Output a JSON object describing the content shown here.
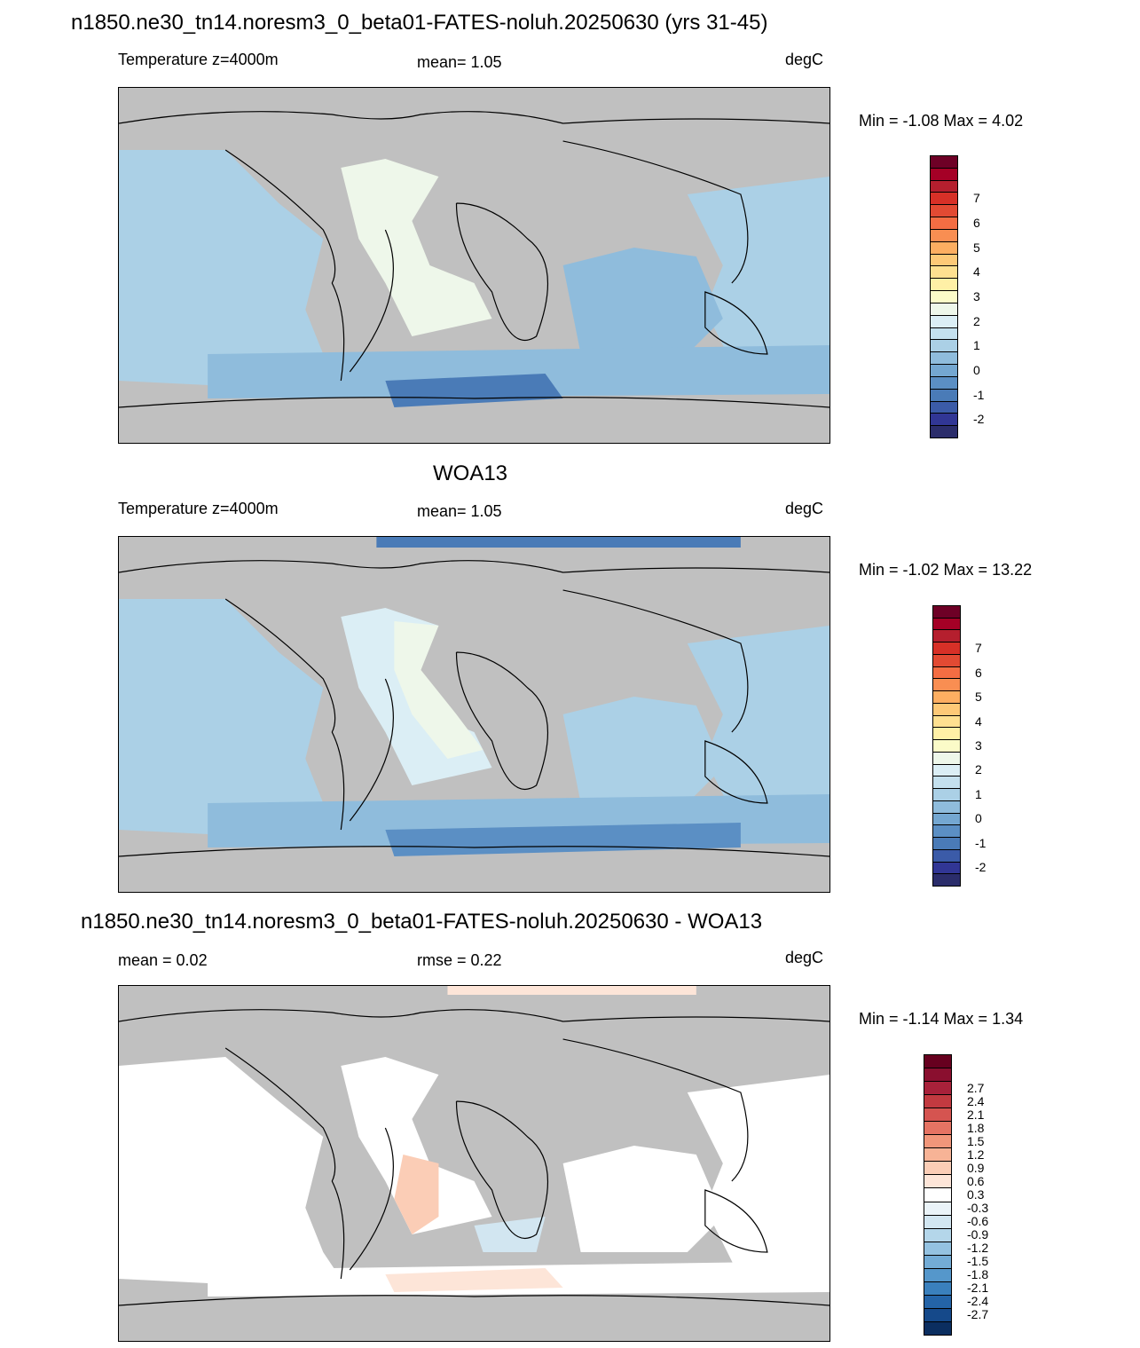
{
  "page": {
    "title": "n1850.ne30_tn14.noresm3_0_beta01-FATES-noluh.20250630 (yrs 31-45)"
  },
  "panels": [
    {
      "heading": "",
      "left_label": "Temperature z=4000m",
      "mid_label": "mean=   1.05",
      "unit": "degC",
      "minmax": "Min =  -1.08 Max =   4.02",
      "palette": "temp"
    },
    {
      "heading": "WOA13",
      "left_label": "Temperature z=4000m",
      "mid_label": "mean=   1.05",
      "unit": "degC",
      "minmax": "Min =  -1.02 Max =  13.22",
      "palette": "temp"
    },
    {
      "heading": "n1850.ne30_tn14.noresm3_0_beta01-FATES-noluh.20250630 - WOA13",
      "left_label": "mean =   0.02",
      "mid_label": "rmse =   0.22",
      "unit": "degC",
      "minmax": "Min =  -1.14 Max =   1.34",
      "palette": "diff"
    }
  ],
  "colorbars": {
    "temp": {
      "colors": [
        "#2b2d6b",
        "#313695",
        "#3b5ba8",
        "#4a7bb7",
        "#5b8fc4",
        "#74a7d1",
        "#8fbcdc",
        "#abd0e6",
        "#c4e0ee",
        "#dbeef5",
        "#eef7ea",
        "#fbfbc8",
        "#fff0a6",
        "#fee090",
        "#fdc977",
        "#fdae61",
        "#f98e52",
        "#f46d43",
        "#e24a33",
        "#d73027",
        "#b51f2e",
        "#a50026",
        "#6e0026"
      ],
      "tick_labels": [
        "-2",
        "-1",
        "0",
        "1",
        "2",
        "3",
        "4",
        "5",
        "6",
        "7"
      ]
    },
    "diff": {
      "colors": [
        "#0b2e60",
        "#15498a",
        "#2464a8",
        "#3a80bd",
        "#5597cb",
        "#73acd6",
        "#94c2e1",
        "#b4d6ea",
        "#d2e6f1",
        "#eaf3f8",
        "#ffffff",
        "#fde5d8",
        "#fbcdb6",
        "#f7b396",
        "#f1967a",
        "#e57363",
        "#d55450",
        "#c23a40",
        "#a8213a",
        "#8a0f2f",
        "#67001f"
      ],
      "tick_labels": [
        "-2.7",
        "-2.4",
        "-2.1",
        "-1.8",
        "-1.5",
        "-1.2",
        "-0.9",
        "-0.6",
        "-0.3",
        "0.3",
        "0.6",
        "0.9",
        "1.2",
        "1.5",
        "1.8",
        "2.1",
        "2.4",
        "2.7"
      ]
    }
  },
  "map_colors": {
    "land": "#c0c0c0",
    "coast": "#000000"
  }
}
